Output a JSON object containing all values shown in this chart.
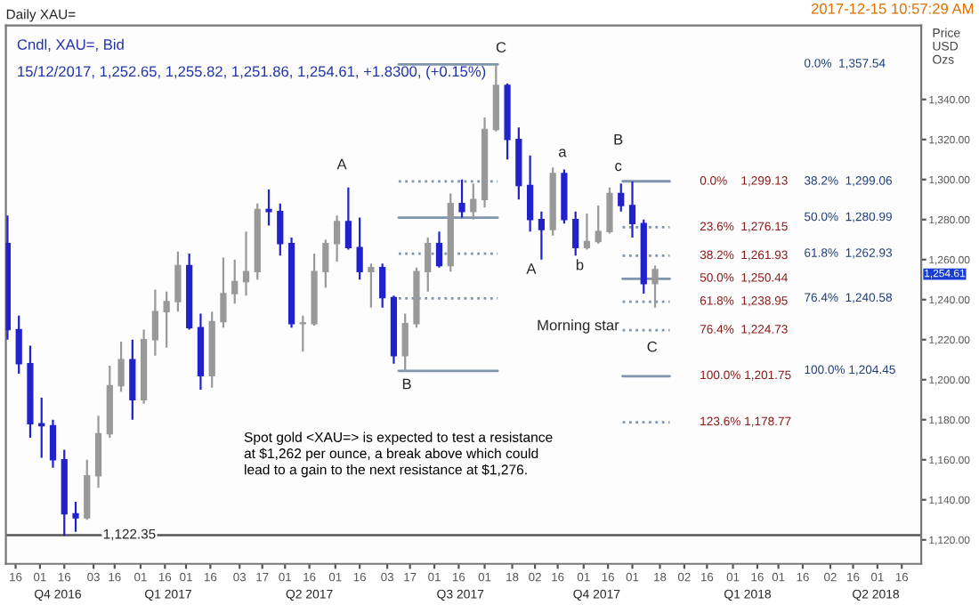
{
  "chart_data": {
    "type": "candlestick",
    "title": "Daily XAU=",
    "subtitle": "Cndl, XAU=, Bid",
    "ylabel": "Price\nUSD\nOzs",
    "x": [
      "2016-11-11",
      "2016-11-18",
      "2016-11-25",
      "2016-12-02",
      "2016-12-09",
      "2016-12-16",
      "2016-12-23",
      "2016-12-30",
      "2017-01-06",
      "2017-01-13",
      "2017-01-20",
      "2017-01-27",
      "2017-02-03",
      "2017-02-10",
      "2017-02-17",
      "2017-02-24",
      "2017-03-03",
      "2017-03-10",
      "2017-03-17",
      "2017-03-24",
      "2017-03-31",
      "2017-04-07",
      "2017-04-14",
      "2017-04-21",
      "2017-04-28",
      "2017-05-05",
      "2017-05-12",
      "2017-05-19",
      "2017-05-26",
      "2017-06-02",
      "2017-06-09",
      "2017-06-16",
      "2017-06-23",
      "2017-06-30",
      "2017-07-07",
      "2017-07-14",
      "2017-07-21",
      "2017-07-28",
      "2017-08-04",
      "2017-08-11",
      "2017-08-18",
      "2017-08-25",
      "2017-09-01",
      "2017-09-08",
      "2017-09-15",
      "2017-09-22",
      "2017-09-29",
      "2017-10-06",
      "2017-10-13",
      "2017-10-20",
      "2017-10-27",
      "2017-11-03",
      "2017-11-10",
      "2017-11-17",
      "2017-11-24",
      "2017-12-01",
      "2017-12-08",
      "2017-12-15"
    ],
    "ohlc": [
      [
        1268,
        1282,
        1220,
        1225
      ],
      [
        1225,
        1232,
        1203,
        1208
      ],
      [
        1208,
        1217,
        1171,
        1178
      ],
      [
        1178,
        1191,
        1161,
        1177
      ],
      [
        1177,
        1180,
        1156,
        1160
      ],
      [
        1160,
        1165,
        1122,
        1133
      ],
      [
        1133,
        1139,
        1124,
        1131
      ],
      [
        1131,
        1160,
        1130,
        1152
      ],
      [
        1152,
        1182,
        1146,
        1173
      ],
      [
        1173,
        1207,
        1171,
        1197
      ],
      [
        1197,
        1219,
        1194,
        1210
      ],
      [
        1210,
        1220,
        1180,
        1190
      ],
      [
        1190,
        1225,
        1188,
        1220
      ],
      [
        1220,
        1245,
        1212,
        1234
      ],
      [
        1234,
        1244,
        1216,
        1239
      ],
      [
        1239,
        1264,
        1234,
        1257
      ],
      [
        1257,
        1263,
        1225,
        1226
      ],
      [
        1226,
        1233,
        1195,
        1202
      ],
      [
        1202,
        1234,
        1196,
        1229
      ],
      [
        1229,
        1261,
        1226,
        1243
      ],
      [
        1243,
        1260,
        1238,
        1249
      ],
      [
        1249,
        1274,
        1242,
        1254
      ],
      [
        1254,
        1288,
        1250,
        1285
      ],
      [
        1285,
        1295,
        1277,
        1284
      ],
      [
        1284,
        1288,
        1262,
        1268
      ],
      [
        1268,
        1271,
        1226,
        1228
      ],
      [
        1228,
        1232,
        1214,
        1228
      ],
      [
        1228,
        1263,
        1227,
        1254
      ],
      [
        1254,
        1270,
        1246,
        1268
      ],
      [
        1268,
        1282,
        1259,
        1279
      ],
      [
        1279,
        1296,
        1265,
        1266
      ],
      [
        1266,
        1281,
        1250,
        1254
      ],
      [
        1254,
        1258,
        1236,
        1256
      ],
      [
        1256,
        1258,
        1236,
        1241
      ],
      [
        1241,
        1242,
        1208,
        1212
      ],
      [
        1212,
        1233,
        1204,
        1228
      ],
      [
        1228,
        1256,
        1226,
        1254
      ],
      [
        1254,
        1271,
        1244,
        1268
      ],
      [
        1268,
        1274,
        1256,
        1257
      ],
      [
        1257,
        1293,
        1254,
        1288
      ],
      [
        1288,
        1300,
        1281,
        1284
      ],
      [
        1284,
        1298,
        1280,
        1290
      ],
      [
        1290,
        1331,
        1286,
        1325
      ],
      [
        1325,
        1357,
        1324,
        1347
      ],
      [
        1347,
        1348,
        1310,
        1320
      ],
      [
        1320,
        1326,
        1290,
        1297
      ],
      [
        1297,
        1312,
        1274,
        1280
      ],
      [
        1280,
        1284,
        1260,
        1275
      ],
      [
        1275,
        1306,
        1272,
        1303
      ],
      [
        1303,
        1305,
        1278,
        1280
      ],
      [
        1280,
        1284,
        1262,
        1266
      ],
      [
        1266,
        1283,
        1265,
        1269
      ],
      [
        1269,
        1287,
        1268,
        1274
      ],
      [
        1274,
        1296,
        1273,
        1293
      ],
      [
        1293,
        1298,
        1284,
        1287
      ],
      [
        1287,
        1299,
        1271,
        1278
      ],
      [
        1278,
        1280,
        1243,
        1248
      ],
      [
        1248,
        1257,
        1236,
        1255
      ]
    ],
    "colors": [
      "#2222cc",
      "#2222cc",
      "#2222cc",
      "#2222cc",
      "#2222cc",
      "#2222cc",
      "#2222cc",
      "#999999",
      "#999999",
      "#999999",
      "#999999",
      "#2222cc",
      "#999999",
      "#999999",
      "#999999",
      "#999999",
      "#2222cc",
      "#2222cc",
      "#999999",
      "#999999",
      "#999999",
      "#999999",
      "#999999",
      "#2222cc",
      "#2222cc",
      "#2222cc",
      "#999999",
      "#999999",
      "#999999",
      "#999999",
      "#2222cc",
      "#2222cc",
      "#999999",
      "#2222cc",
      "#2222cc",
      "#999999",
      "#999999",
      "#999999",
      "#2222cc",
      "#999999",
      "#2222cc",
      "#999999",
      "#999999",
      "#999999",
      "#2222cc",
      "#2222cc",
      "#2222cc",
      "#2222cc",
      "#999999",
      "#2222cc",
      "#2222cc",
      "#999999",
      "#999999",
      "#999999",
      "#2222cc",
      "#2222cc",
      "#2222cc",
      "#999999"
    ],
    "series": [
      {
        "type": "line",
        "color": "#7f95ad",
        "line_style": "solid",
        "x": [
          "2017-07-10",
          "2017-09-09"
        ],
        "values": [
          1357.54,
          1357.54
        ]
      },
      {
        "type": "line",
        "color": "#7f95ad",
        "line_style": "dotted",
        "x": [
          "2017-07-10",
          "2017-09-09"
        ],
        "values": [
          1299.06,
          1299.06
        ]
      },
      {
        "type": "line",
        "color": "#7f95ad",
        "line_style": "solid",
        "x": [
          "2017-07-10",
          "2017-09-09"
        ],
        "values": [
          1280.99,
          1280.99
        ]
      },
      {
        "type": "line",
        "color": "#7f95ad",
        "line_style": "dotted",
        "x": [
          "2017-07-10",
          "2017-09-09"
        ],
        "values": [
          1262.93,
          1262.93
        ]
      },
      {
        "type": "line",
        "color": "#7f95ad",
        "line_style": "dotted",
        "x": [
          "2017-07-10",
          "2017-09-09"
        ],
        "values": [
          1240.58,
          1240.58
        ]
      },
      {
        "type": "line",
        "color": "#7f95ad",
        "line_style": "solid",
        "x": [
          "2017-07-10",
          "2017-09-09"
        ],
        "values": [
          1204.45,
          1204.45
        ]
      },
      {
        "type": "line",
        "color": "#7f95ad",
        "line_style": "solid",
        "x": [
          "2017-11-25",
          "2017-12-24"
        ],
        "values": [
          1299.13,
          1299.13
        ]
      },
      {
        "type": "line",
        "color": "#7f95ad",
        "line_style": "dotted",
        "x": [
          "2017-11-25",
          "2017-12-24"
        ],
        "values": [
          1276.15,
          1276.15
        ]
      },
      {
        "type": "line",
        "color": "#7f95ad",
        "line_style": "dotted",
        "x": [
          "2017-11-25",
          "2017-12-24"
        ],
        "values": [
          1261.93,
          1261.93
        ]
      },
      {
        "type": "line",
        "color": "#7f95ad",
        "line_style": "solid",
        "x": [
          "2017-11-25",
          "2017-12-24"
        ],
        "values": [
          1250.44,
          1250.44
        ]
      },
      {
        "type": "line",
        "color": "#7f95ad",
        "line_style": "dotted",
        "x": [
          "2017-11-25",
          "2017-12-24"
        ],
        "values": [
          1238.95,
          1238.95
        ]
      },
      {
        "type": "line",
        "color": "#7f95ad",
        "line_style": "dotted",
        "x": [
          "2017-11-25",
          "2017-12-24"
        ],
        "values": [
          1224.73,
          1224.73
        ]
      },
      {
        "type": "line",
        "color": "#7f95ad",
        "line_style": "solid",
        "x": [
          "2017-11-25",
          "2017-12-24"
        ],
        "values": [
          1201.75,
          1201.75
        ]
      },
      {
        "type": "line",
        "color": "#7f95ad",
        "line_style": "dotted",
        "x": [
          "2017-11-25",
          "2017-12-24"
        ],
        "values": [
          1178.77,
          1178.77
        ]
      }
    ],
    "ref_lines": [
      {
        "axis": "y",
        "value": 1122.35,
        "label": "1,122.35",
        "color": "#555555"
      }
    ],
    "annotations": [
      "15/12/2017, 1,252.65, 1,255.82, 1,251.86, 1,254.61, +1.8300, (+0.15%)",
      "2017-12-15 10:57:29 AM",
      "Spot gold <XAU=> is expected to test a resistance\nat $1,262 per ounce, a break above which could\nlead to a gain to the next resistance at $1,276.",
      "1,254.61",
      "A",
      "B",
      "C",
      "A",
      "a",
      "b",
      "c",
      "B",
      "C",
      "Morning star",
      "0.0%  1,357.54",
      "38.2%  1,299.06",
      "50.0%  1,280.99",
      "61.8%  1,262.93",
      "76.4%  1,240.58",
      "100.0% 1,204.45",
      "0.0%    1,299.13",
      "23.6%  1,276.15",
      "38.2%  1,261.93",
      "50.0%  1,250.44",
      "61.8%  1,238.95",
      "76.4%  1,224.73",
      "100.0% 1,201.75",
      "123.6% 1,178.77"
    ],
    "x2lim": [
      "2016-11-10",
      "2018-05-28"
    ],
    "xlim": [
      "2016-11-10",
      "2018-05-28"
    ],
    "ylim": [
      1108,
      1377
    ],
    "yticks": [
      {
        "value": 1120,
        "label": "1,120.00"
      },
      {
        "value": 1140,
        "label": "1,140.00"
      },
      {
        "value": 1160,
        "label": "1,160.00"
      },
      {
        "value": 1180,
        "label": "1,180.00"
      },
      {
        "value": 1200,
        "label": "1,200.00"
      },
      {
        "value": 1220,
        "label": "1,220.00"
      },
      {
        "value": 1240,
        "label": "1,240.00"
      },
      {
        "value": 1260,
        "label": "1,260.00"
      },
      {
        "value": 1280,
        "label": "1,280.00"
      },
      {
        "value": 1300,
        "label": "1,300.00"
      },
      {
        "value": 1320,
        "label": "1,320.00"
      },
      {
        "value": 1340,
        "label": "1,340.00"
      }
    ],
    "xticks": [
      {
        "value": "2016-11-16",
        "label": "16"
      },
      {
        "value": "2016-12-01",
        "label": "01"
      },
      {
        "value": "2016-12-16",
        "label": "16"
      },
      {
        "value": "2017-01-03",
        "label": "03"
      },
      {
        "value": "2017-01-16",
        "label": "16"
      },
      {
        "value": "2017-02-01",
        "label": "01"
      },
      {
        "value": "2017-02-16",
        "label": "16"
      },
      {
        "value": "2017-03-01",
        "label": "01"
      },
      {
        "value": "2017-03-16",
        "label": "16"
      },
      {
        "value": "2017-04-03",
        "label": "03"
      },
      {
        "value": "2017-04-17",
        "label": "17"
      },
      {
        "value": "2017-05-01",
        "label": "01"
      },
      {
        "value": "2017-05-16",
        "label": "16"
      },
      {
        "value": "2017-06-01",
        "label": "01"
      },
      {
        "value": "2017-06-16",
        "label": "16"
      },
      {
        "value": "2017-07-03",
        "label": "03"
      },
      {
        "value": "2017-07-17",
        "label": "17"
      },
      {
        "value": "2017-08-01",
        "label": "01"
      },
      {
        "value": "2017-08-16",
        "label": "16"
      },
      {
        "value": "2017-09-01",
        "label": "01"
      },
      {
        "value": "2017-09-18",
        "label": "18"
      },
      {
        "value": "2017-10-02",
        "label": "02"
      },
      {
        "value": "2017-10-16",
        "label": "16"
      },
      {
        "value": "2017-11-01",
        "label": "01"
      },
      {
        "value": "2017-11-16",
        "label": "16"
      },
      {
        "value": "2017-12-01",
        "label": "01"
      },
      {
        "value": "2017-12-18",
        "label": "18"
      },
      {
        "value": "2018-01-02",
        "label": "02"
      },
      {
        "value": "2018-01-16",
        "label": "16"
      },
      {
        "value": "2018-02-01",
        "label": "01"
      },
      {
        "value": "2018-02-16",
        "label": "16"
      },
      {
        "value": "2018-03-01",
        "label": "01"
      },
      {
        "value": "2018-03-16",
        "label": "16"
      },
      {
        "value": "2018-04-02",
        "label": "02"
      },
      {
        "value": "2018-04-16",
        "label": "16"
      },
      {
        "value": "2018-05-01",
        "label": "01"
      },
      {
        "value": "2018-05-16",
        "label": "16"
      }
    ],
    "x2ticks": [
      {
        "value": "2016-12-12",
        "label": "Q4 2016"
      },
      {
        "value": "2017-02-18",
        "label": "Q1 2017"
      },
      {
        "value": "2017-05-16",
        "label": "Q2 2017"
      },
      {
        "value": "2017-08-17",
        "label": "Q3 2017"
      },
      {
        "value": "2017-11-09",
        "label": "Q4 2017"
      },
      {
        "value": "2018-02-10",
        "label": "Q1 2018"
      },
      {
        "value": "2018-04-30",
        "label": "Q2 2018"
      }
    ],
    "grid": false
  }
}
